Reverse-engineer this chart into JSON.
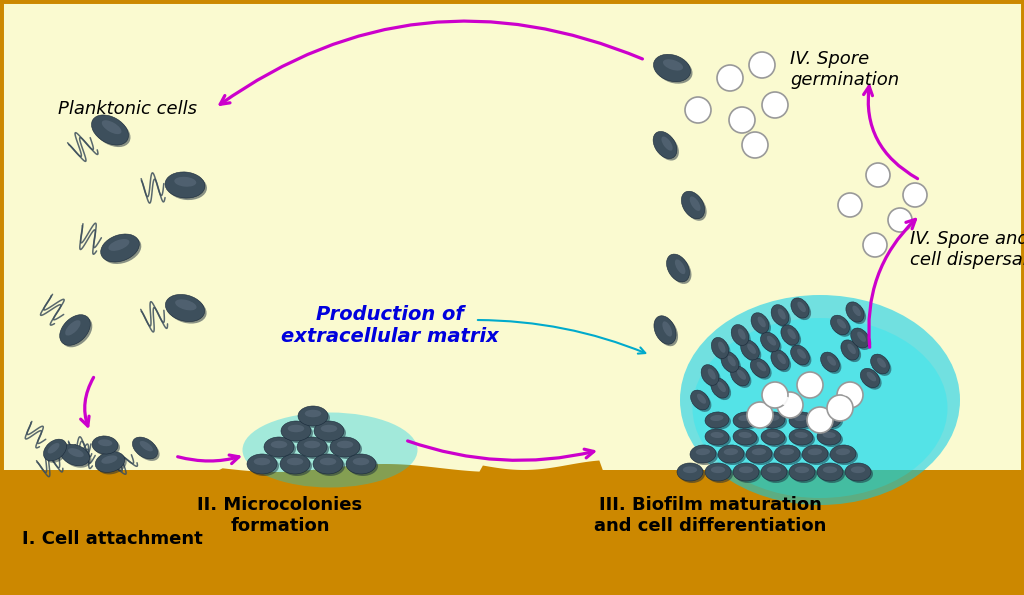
{
  "bg_color": "#FAFAD0",
  "border_color": "#CC8800",
  "ground_color": "#CC8800",
  "cell_color": "#3D4F5C",
  "cell_highlight": "#5A6A7A",
  "cell_dark": "#1A2A3A",
  "cyan_color": "#00CCEE",
  "arrow_color": "#CC00CC",
  "matrix_color": "#0000DD",
  "cyan_arrow_color": "#00AACC",
  "labels": {
    "planktonic": "Planktonic cells",
    "stage1": "I. Cell attachment",
    "stage2": "II. Microcolonies\nformation",
    "stage3": "III. Biofilm maturation\nand cell differentiation",
    "stage4a": "IV. Spore\ngermination",
    "stage4b": "IV. Spore and\ncell dispersal",
    "matrix": "Production of\nextracellular matrix"
  },
  "figsize": [
    10.24,
    5.95
  ],
  "dpi": 100
}
